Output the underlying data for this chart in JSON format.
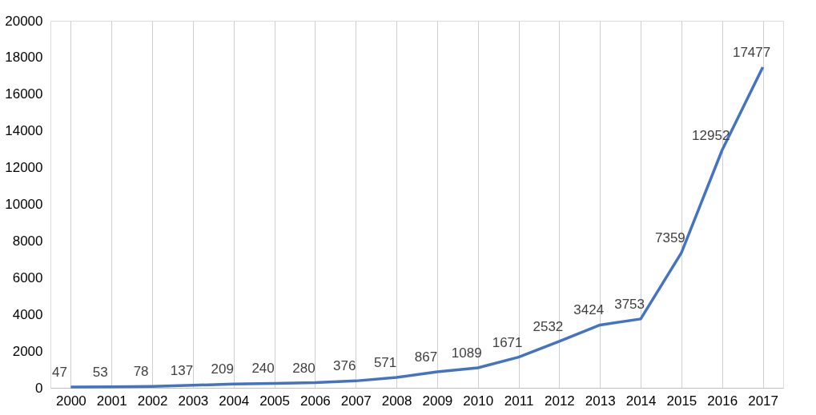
{
  "chart_data": {
    "type": "line",
    "categories": [
      "2000",
      "2001",
      "2002",
      "2003",
      "2004",
      "2005",
      "2006",
      "2007",
      "2008",
      "2009",
      "2010",
      "2011",
      "2012",
      "2013",
      "2014",
      "2015",
      "2016",
      "2017"
    ],
    "series": [
      {
        "color": "#4472c4",
        "values": [
          47,
          53,
          78,
          137,
          209,
          240,
          280,
          376,
          571,
          867,
          1089,
          1671,
          2532,
          3424,
          3753,
          7359,
          12952,
          17477
        ]
      }
    ],
    "ylim": [
      0,
      20000
    ],
    "yticks": [
      0,
      2000,
      4000,
      6000,
      8000,
      10000,
      12000,
      14000,
      16000,
      18000,
      20000
    ],
    "grid": "x",
    "data_labels": true,
    "marker": "none",
    "line_style": "solid"
  }
}
